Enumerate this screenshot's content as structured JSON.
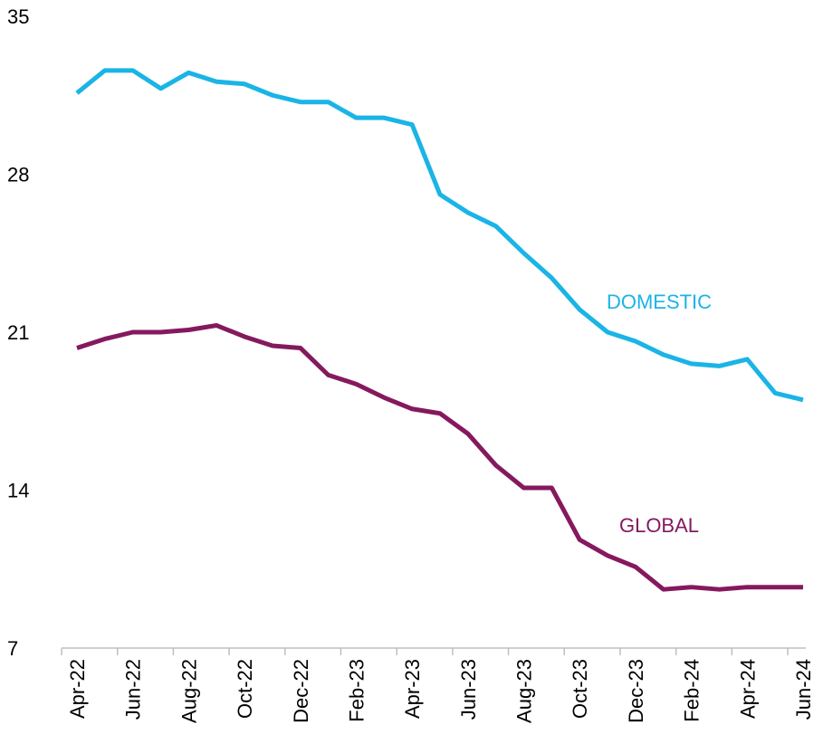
{
  "chart_data": {
    "type": "line",
    "categories": [
      "Apr-22",
      null,
      "Jun-22",
      null,
      "Aug-22",
      null,
      "Oct-22",
      null,
      "Dec-22",
      null,
      "Feb-23",
      null,
      "Apr-23",
      null,
      "Jun-23",
      null,
      "Aug-23",
      null,
      "Oct-23",
      null,
      "Dec-23",
      null,
      "Feb-24",
      null,
      "Apr-24",
      null,
      "Jun-24"
    ],
    "series": [
      {
        "name": "DOMESTIC",
        "color": "#1ab4e6",
        "values": [
          31.6,
          32.6,
          32.6,
          31.8,
          32.5,
          32.1,
          32.0,
          31.5,
          31.2,
          31.2,
          30.5,
          30.5,
          30.2,
          27.1,
          26.3,
          25.7,
          24.5,
          23.4,
          22.0,
          21.0,
          20.6,
          20.0,
          19.6,
          19.5,
          19.8,
          18.3,
          18.0
        ]
      },
      {
        "name": "GLOBAL",
        "color": "#85195e",
        "values": [
          20.3,
          20.7,
          21.0,
          21.0,
          21.1,
          21.3,
          20.8,
          20.4,
          20.3,
          19.1,
          18.7,
          18.1,
          17.6,
          17.4,
          16.5,
          15.1,
          14.1,
          14.1,
          11.8,
          11.1,
          10.6,
          9.6,
          9.7,
          9.6,
          9.7,
          9.7,
          9.7
        ]
      }
    ],
    "ylim": [
      7,
      35
    ],
    "yticks": [
      7,
      14,
      21,
      28,
      35
    ],
    "grid": false
  }
}
